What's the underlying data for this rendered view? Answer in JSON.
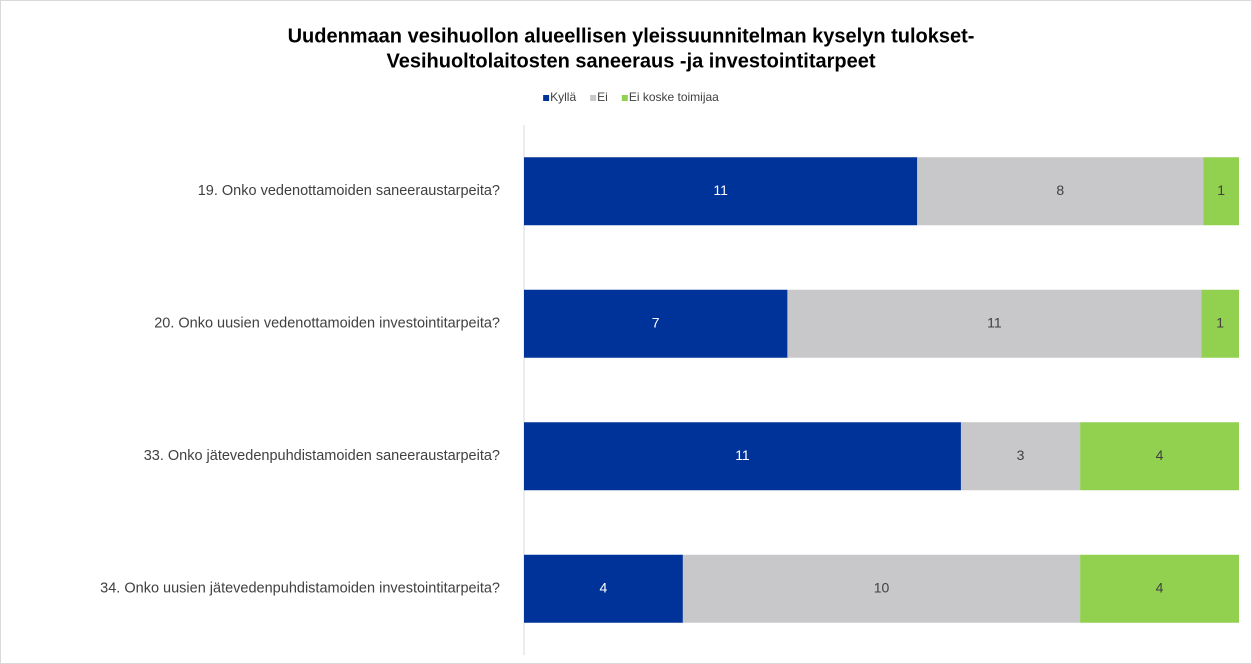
{
  "chart_data": {
    "type": "bar",
    "orientation": "horizontal",
    "stacked": "percent",
    "title": [
      "Uudenmaan vesihuollon alueellisen yleissuunnitelman kyselyn tulokset-",
      "Vesihuoltolaitosten saneeraus -ja investointitarpeet"
    ],
    "categories": [
      "19. Onko vedenottamoiden saneeraustarpeita?",
      "20. Onko uusien vedenottamoiden investointitarpeita?",
      "33. Onko jätevedenpuhdistamoiden saneeraustarpeita?",
      "34. Onko uusien jätevedenpuhdistamoiden investointitarpeita?"
    ],
    "series": [
      {
        "name": "Kyllä",
        "color": "#003399",
        "values": [
          11,
          7,
          11,
          4
        ]
      },
      {
        "name": "Ei",
        "color": "#c8c8ca",
        "values": [
          8,
          11,
          3,
          10
        ]
      },
      {
        "name": "Ei koske toimijaa",
        "color": "#92d050",
        "values": [
          1,
          1,
          4,
          4
        ]
      }
    ],
    "legend": "top"
  }
}
